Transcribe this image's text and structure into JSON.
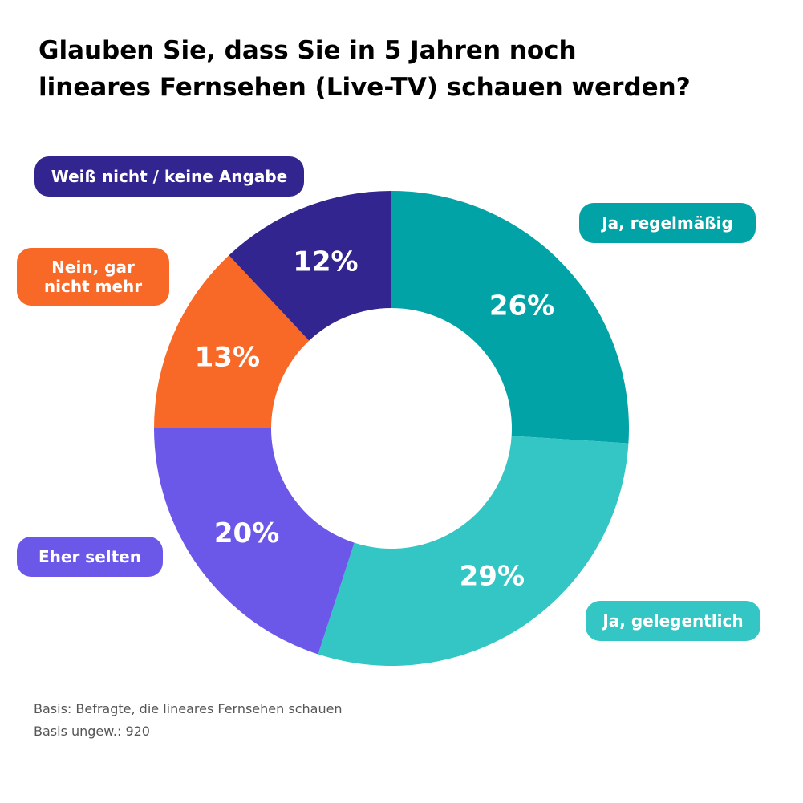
{
  "chart_data": {
    "type": "pie",
    "variant": "donut",
    "title": [
      "Glauben Sie, dass Sie in 5 Jahren noch",
      "lineares Fernsehen (Live-TV) schauen werden?"
    ],
    "slices": [
      {
        "label": "Ja, regelmäßig",
        "value": 26,
        "display": "26%",
        "color": "#02A3A6"
      },
      {
        "label": "Ja, gelegentlich",
        "value": 29,
        "display": "29%",
        "color": "#33C6C4"
      },
      {
        "label": "Eher selten",
        "value": 20,
        "display": "20%",
        "color": "#6B58E8"
      },
      {
        "label": "Nein, gar nicht mehr",
        "value": 13,
        "display": "13%",
        "color": "#F86827"
      },
      {
        "label": "Weiß nicht / keine Angabe",
        "value": 12,
        "display": "12%",
        "color": "#32258F"
      }
    ],
    "start": "top",
    "direction": "clockwise",
    "footnotes": [
      "Basis: Befragte, die lineares Fernsehen schauen",
      "Basis ungew.: 920"
    ]
  }
}
